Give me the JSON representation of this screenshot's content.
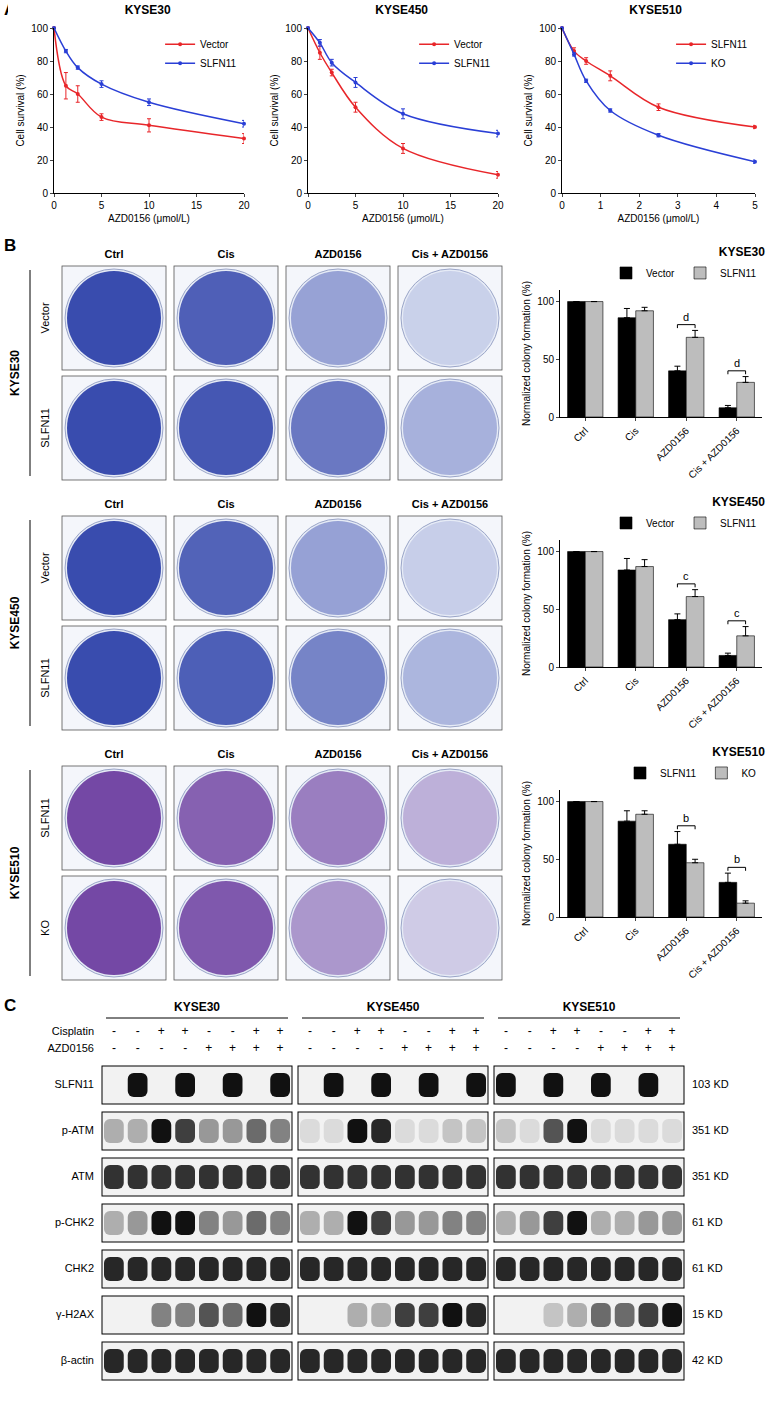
{
  "panel_labels": [
    "A",
    "B",
    "C"
  ],
  "chart_data": [
    {
      "type": "line",
      "title": "KYSE30",
      "xlabel": "AZD0156 (μmol/L)",
      "ylabel": "Cell survival (%)",
      "x": [
        0,
        1.25,
        2.5,
        5,
        10,
        20
      ],
      "xlim": [
        0,
        20
      ],
      "xticks": [
        0,
        5,
        10,
        15,
        20
      ],
      "ylim": [
        0,
        100
      ],
      "yticks": [
        0,
        20,
        40,
        60,
        80,
        100
      ],
      "legend": "upper right",
      "series": [
        {
          "name": "Vector",
          "color": "#e8262a",
          "values": [
            100,
            65,
            60,
            46,
            41,
            33
          ],
          "error": [
            0,
            8,
            5,
            2,
            4,
            3
          ]
        },
        {
          "name": "SLFN11",
          "color": "#2a3fd6",
          "values": [
            100,
            86,
            76,
            66,
            55,
            42
          ],
          "error": [
            0,
            1,
            1,
            2,
            2,
            2
          ]
        }
      ]
    },
    {
      "type": "line",
      "title": "KYSE450",
      "xlabel": "AZD0156 (μmol/L)",
      "ylabel": "Cell survival (%)",
      "x": [
        0,
        1.25,
        2.5,
        5,
        10,
        20
      ],
      "xlim": [
        0,
        20
      ],
      "xticks": [
        0,
        5,
        10,
        15,
        20
      ],
      "ylim": [
        0,
        100
      ],
      "yticks": [
        0,
        20,
        40,
        60,
        80,
        100
      ],
      "legend": "upper right",
      "series": [
        {
          "name": "Vector",
          "color": "#e8262a",
          "values": [
            100,
            85,
            73,
            52,
            27,
            11
          ],
          "error": [
            0,
            4,
            2,
            3,
            3,
            2
          ]
        },
        {
          "name": "SLFN11",
          "color": "#2a3fd6",
          "values": [
            100,
            91,
            79,
            67,
            48,
            36
          ],
          "error": [
            0,
            2,
            2,
            3,
            3,
            2
          ]
        }
      ]
    },
    {
      "type": "line",
      "title": "KYSE510",
      "xlabel": "AZD0156 (μmol/L)",
      "ylabel": "Cell survival (%)",
      "x": [
        0,
        0.3125,
        0.625,
        1.25,
        2.5,
        5
      ],
      "xlim": [
        0,
        5
      ],
      "xticks": [
        0,
        1,
        2,
        3,
        4,
        5
      ],
      "ylim": [
        0,
        100
      ],
      "yticks": [
        0,
        20,
        40,
        60,
        80,
        100
      ],
      "legend": "upper right",
      "series": [
        {
          "name": "SLFN11",
          "color": "#e8262a",
          "values": [
            100,
            86,
            80,
            71,
            52,
            40
          ],
          "error": [
            0,
            2,
            2,
            3,
            2,
            1
          ]
        },
        {
          "name": "KO",
          "color": "#2a3fd6",
          "values": [
            100,
            84,
            68,
            50,
            35,
            19
          ],
          "error": [
            0,
            1,
            1,
            1,
            1,
            1
          ]
        }
      ]
    },
    {
      "type": "bar",
      "title": "KYSE30",
      "ylabel": "Normalized colony formation (%)",
      "categories": [
        "Ctrl",
        "Cis",
        "AZD0156",
        "Cis + AZD0156"
      ],
      "ylim": [
        0,
        110
      ],
      "yticks": [
        0,
        50,
        100
      ],
      "legend": "upper right",
      "series": [
        {
          "name": "Vector",
          "color": "#000000",
          "values": [
            100,
            86,
            40,
            8
          ],
          "error": [
            0,
            8,
            4,
            2
          ]
        },
        {
          "name": "SLFN11",
          "color": "#bdbdbd",
          "values": [
            100,
            92,
            69,
            30
          ],
          "error": [
            0,
            3,
            6,
            5
          ]
        }
      ],
      "significance": [
        {
          "category": "AZD0156",
          "label": "d"
        },
        {
          "category": "Cis + AZD0156",
          "label": "d"
        }
      ]
    },
    {
      "type": "bar",
      "title": "KYSE450",
      "ylabel": "Normalized colony formation (%)",
      "categories": [
        "Ctrl",
        "Cis",
        "AZD0156",
        "Cis + AZD0156"
      ],
      "ylim": [
        0,
        110
      ],
      "yticks": [
        0,
        50,
        100
      ],
      "legend": "upper right",
      "series": [
        {
          "name": "Vector",
          "color": "#000000",
          "values": [
            100,
            84,
            41,
            10
          ],
          "error": [
            0,
            10,
            5,
            2
          ]
        },
        {
          "name": "SLFN11",
          "color": "#bdbdbd",
          "values": [
            100,
            87,
            61,
            27
          ],
          "error": [
            0,
            6,
            6,
            8
          ]
        }
      ],
      "significance": [
        {
          "category": "AZD0156",
          "label": "c"
        },
        {
          "category": "Cis + AZD0156",
          "label": "c"
        }
      ]
    },
    {
      "type": "bar",
      "title": "KYSE510",
      "ylabel": "Normalized colony formation (%)",
      "categories": [
        "Ctrl",
        "Cis",
        "AZD0156",
        "Cis + AZD0156"
      ],
      "ylim": [
        0,
        110
      ],
      "yticks": [
        0,
        50,
        100
      ],
      "legend": "upper right",
      "series": [
        {
          "name": "SLFN11",
          "color": "#000000",
          "values": [
            100,
            83,
            63,
            30
          ],
          "error": [
            0,
            9,
            11,
            8
          ]
        },
        {
          "name": "KO",
          "color": "#bdbdbd",
          "values": [
            100,
            89,
            47,
            12
          ],
          "error": [
            0,
            3,
            3,
            2
          ]
        }
      ],
      "significance": [
        {
          "category": "AZD0156",
          "label": "b"
        },
        {
          "category": "Cis + AZD0156",
          "label": "b"
        }
      ]
    }
  ],
  "western_blot": {
    "treatments": [
      {
        "name": "Cisplatin",
        "signs": [
          "-",
          "-",
          "+",
          "+",
          "-",
          "-",
          "+",
          "+"
        ]
      },
      {
        "name": "AZD0156",
        "signs": [
          "-",
          "-",
          "-",
          "-",
          "+",
          "+",
          "+",
          "+"
        ]
      }
    ],
    "proteins": [
      {
        "name": "SLFN11",
        "size": "103 KD"
      },
      {
        "name": "p-ATM",
        "size": "351 KD"
      },
      {
        "name": "ATM",
        "size": "351 KD"
      },
      {
        "name": "p-CHK2",
        "size": "61 KD"
      },
      {
        "name": "CHK2",
        "size": "61 KD"
      },
      {
        "name": "γ-H2AX",
        "size": "15 KD"
      },
      {
        "name": "β-actin",
        "size": "42 KD"
      }
    ],
    "cell_lines": [
      {
        "name": "KYSE30",
        "bands": [
          [
            0,
            1,
            0,
            1,
            0,
            1,
            0,
            1
          ],
          [
            0.3,
            0.3,
            1,
            0.8,
            0.4,
            0.4,
            0.6,
            0.5
          ],
          [
            0.85,
            0.85,
            0.85,
            0.85,
            0.85,
            0.85,
            0.85,
            0.85
          ],
          [
            0.3,
            0.4,
            1,
            1,
            0.5,
            0.4,
            0.6,
            0.5
          ],
          [
            0.9,
            0.9,
            0.9,
            0.9,
            0.9,
            0.9,
            0.9,
            0.9
          ],
          [
            0,
            0,
            0.5,
            0.5,
            0.7,
            0.6,
            1,
            0.9
          ],
          [
            0.9,
            0.9,
            0.9,
            0.9,
            0.9,
            0.9,
            0.9,
            0.9
          ]
        ]
      },
      {
        "name": "KYSE450",
        "bands": [
          [
            0,
            1,
            0,
            1,
            0,
            1,
            0,
            1
          ],
          [
            0.1,
            0.1,
            1,
            0.9,
            0.1,
            0.1,
            0.2,
            0.2
          ],
          [
            0.85,
            0.85,
            0.85,
            0.85,
            0.85,
            0.85,
            0.85,
            0.85
          ],
          [
            0.3,
            0.3,
            1,
            0.8,
            0.4,
            0.4,
            0.5,
            0.5
          ],
          [
            0.9,
            0.9,
            0.9,
            0.9,
            0.9,
            0.9,
            0.9,
            0.9
          ],
          [
            0,
            0,
            0.3,
            0.3,
            0.8,
            0.8,
            1,
            0.9
          ],
          [
            0.9,
            0.9,
            0.9,
            0.9,
            0.9,
            0.9,
            0.9,
            0.9
          ]
        ]
      },
      {
        "name": "KYSE510",
        "bands": [
          [
            1,
            0,
            1,
            0,
            1,
            0,
            1,
            0
          ],
          [
            0.2,
            0.1,
            0.7,
            1,
            0.1,
            0.1,
            0.1,
            0.1
          ],
          [
            0.85,
            0.85,
            0.85,
            0.85,
            0.85,
            0.85,
            0.85,
            0.85
          ],
          [
            0.3,
            0.4,
            0.8,
            1,
            0.3,
            0.3,
            0.4,
            0.4
          ],
          [
            0.9,
            0.9,
            0.9,
            0.9,
            0.9,
            0.9,
            0.9,
            0.9
          ],
          [
            0,
            0,
            0.2,
            0.3,
            0.6,
            0.6,
            0.8,
            1
          ],
          [
            0.9,
            0.9,
            0.9,
            0.9,
            0.9,
            0.9,
            0.9,
            0.9
          ]
        ]
      }
    ]
  }
}
